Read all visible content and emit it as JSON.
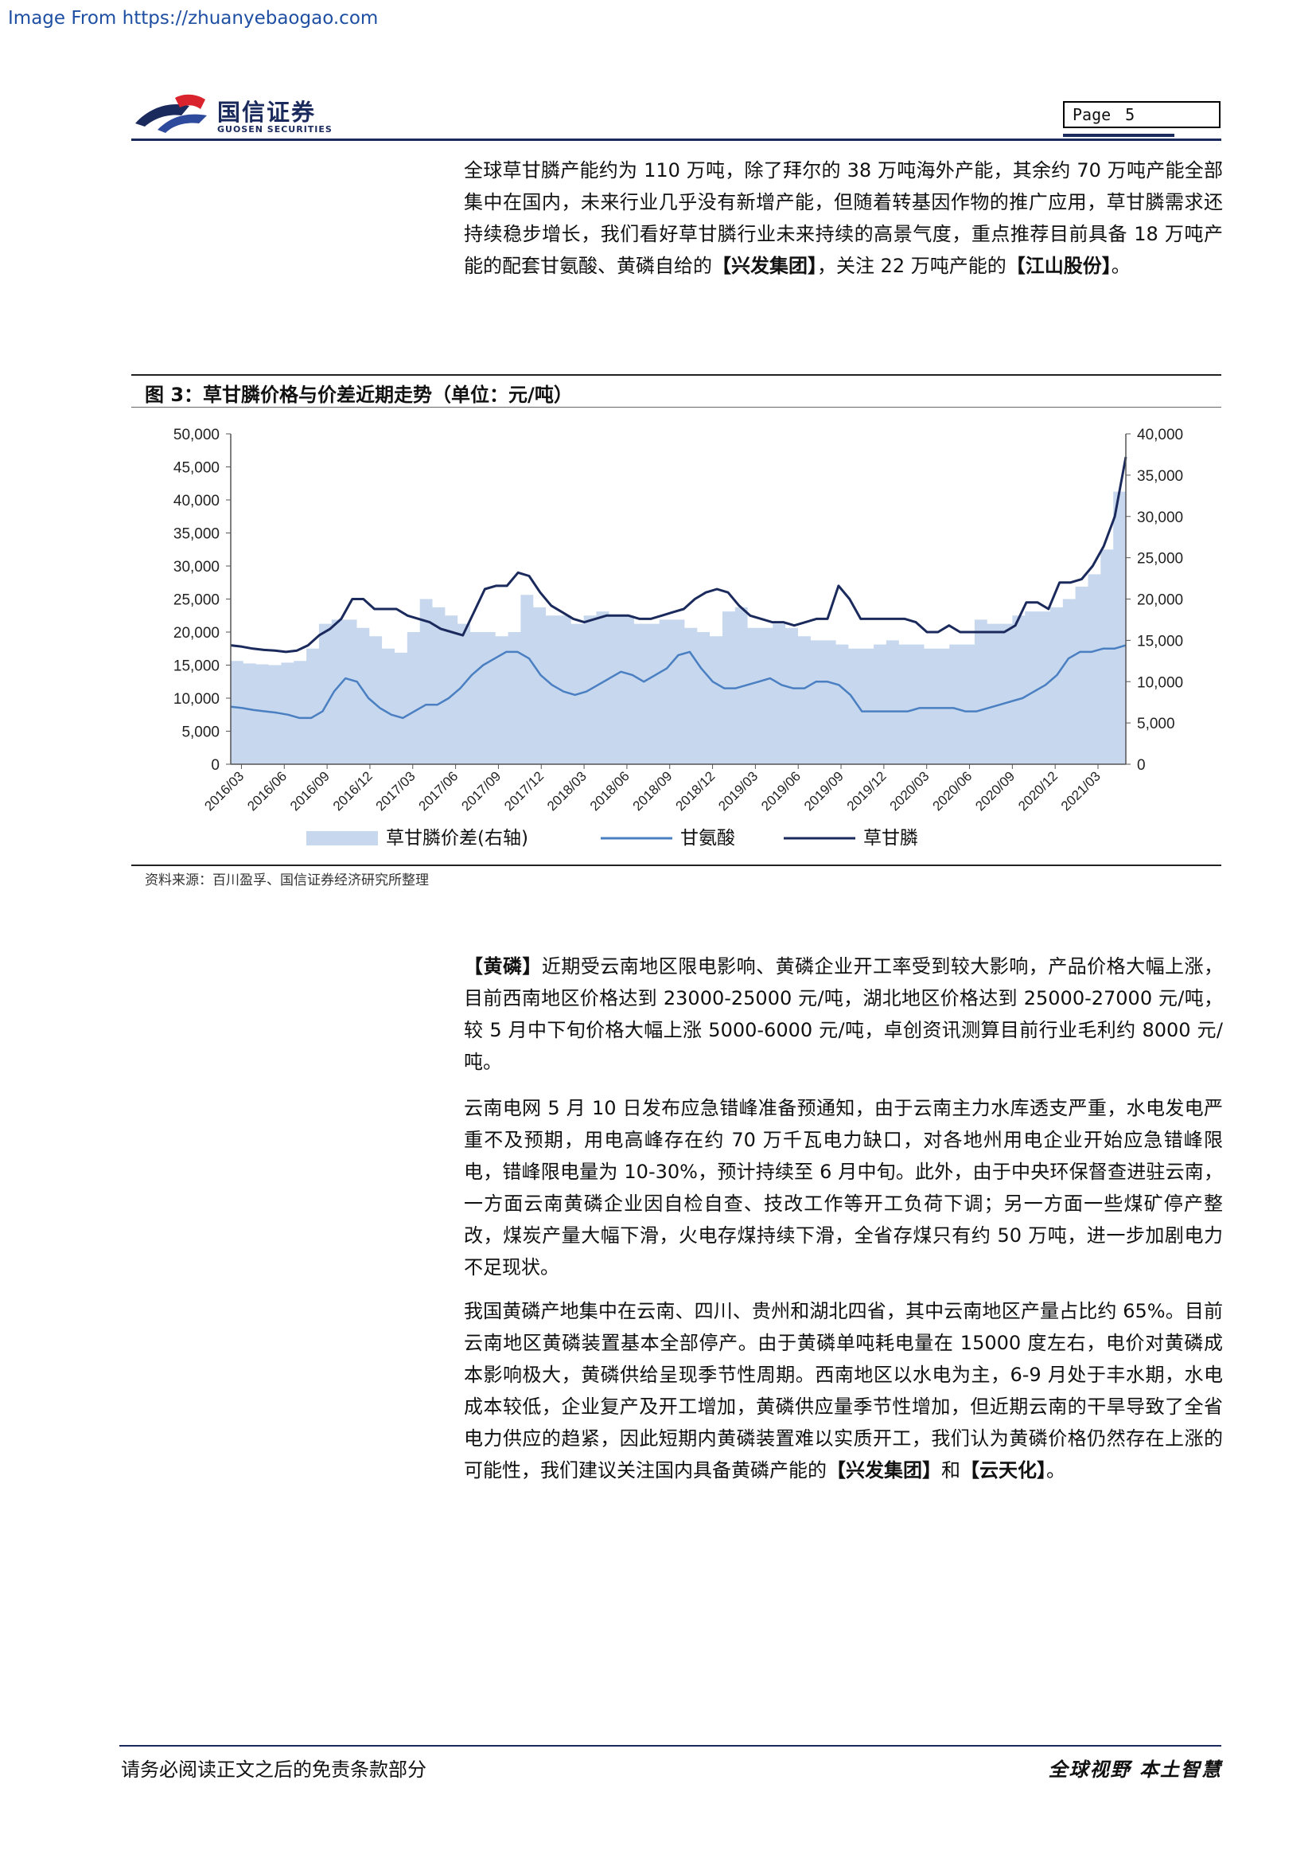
{
  "watermark": "Image From https://zhuanyebaogao.com",
  "header": {
    "logo_cn": "国信证券",
    "logo_en": "GUOSEN SECURITIES",
    "page_label": "Page",
    "page_number": "5"
  },
  "intro_paragraph": {
    "text_a": "全球草甘膦产能约为 110 万吨，除了拜尔的 38 万吨海外产能，其余约 70 万吨产能全部集中在国内，未来行业几乎没有新增产能，但随着转基因作物的推广应用，草甘膦需求还持续稳步增长，我们看好草甘膦行业未来持续的高景气度，重点推荐目前具备 18 万吨产能的配套甘氨酸、黄磷自给的",
    "bold_a": "【兴发集团】",
    "text_b": "，关注 22 万吨产能的",
    "bold_b": "【江山股份】",
    "text_c": "。"
  },
  "figure": {
    "title": "图 3：草甘膦价格与价差近期走势（单位：元/吨）",
    "source": "资料来源：百川盈孚、国信证券经济研究所整理"
  },
  "chart_data": {
    "type": "line",
    "x_labels": [
      "2016/03",
      "2016/06",
      "2016/09",
      "2016/12",
      "2017/03",
      "2017/06",
      "2017/09",
      "2017/12",
      "2018/03",
      "2018/06",
      "2018/09",
      "2018/12",
      "2019/03",
      "2019/06",
      "2019/09",
      "2019/12",
      "2020/03",
      "2020/06",
      "2020/09",
      "2020/12",
      "2021/03"
    ],
    "left_axis": {
      "min": 0,
      "max": 50000,
      "ticks": [
        "0",
        "5,000",
        "10,000",
        "15,000",
        "20,000",
        "25,000",
        "30,000",
        "35,000",
        "40,000",
        "45,000",
        "50,000"
      ]
    },
    "right_axis": {
      "min": 0,
      "max": 40000,
      "ticks": [
        "0",
        "5,000",
        "10,000",
        "15,000",
        "20,000",
        "25,000",
        "30,000",
        "35,000",
        "40,000"
      ]
    },
    "series": [
      {
        "name": "草甘膦价差(右轴)",
        "kind": "area",
        "axis": "right",
        "color": "#c6d7ee",
        "values": [
          12500,
          12200,
          12100,
          12000,
          12300,
          12500,
          14000,
          17000,
          17500,
          17500,
          16500,
          15500,
          14000,
          13500,
          16000,
          20000,
          19000,
          18000,
          17000,
          16000,
          16000,
          15500,
          16000,
          20500,
          19000,
          18000,
          18000,
          17000,
          18000,
          18500,
          18000,
          18000,
          17000,
          17000,
          17500,
          17500,
          16500,
          16000,
          15500,
          18500,
          19000,
          16500,
          16500,
          17000,
          16500,
          15500,
          15000,
          15000,
          14500,
          14000,
          14000,
          14500,
          15000,
          14500,
          14500,
          14000,
          14000,
          14500,
          14500,
          17500,
          17000,
          17000,
          18000,
          18500,
          18500,
          19000,
          20000,
          21500,
          23000,
          26000,
          33000
        ]
      },
      {
        "name": "甘氨酸",
        "kind": "line",
        "axis": "left",
        "color": "#4a7fc1",
        "values": [
          8700,
          8500,
          8200,
          8000,
          7800,
          7500,
          7000,
          7000,
          8000,
          11000,
          13000,
          12500,
          10000,
          8500,
          7500,
          7000,
          8000,
          9000,
          9000,
          10000,
          11500,
          13500,
          15000,
          16000,
          17000,
          17000,
          16000,
          13500,
          12000,
          11000,
          10500,
          11000,
          12000,
          13000,
          14000,
          13500,
          12500,
          13500,
          14500,
          16500,
          17000,
          14500,
          12500,
          11500,
          11500,
          12000,
          12500,
          13000,
          12000,
          11500,
          11500,
          12500,
          12500,
          12000,
          10500,
          8000,
          8000,
          8000,
          8000,
          8000,
          8500,
          8500,
          8500,
          8500,
          8000,
          8000,
          8500,
          9000,
          9500,
          10000,
          11000,
          12000,
          13500,
          16000,
          17000,
          17000,
          17500,
          17500,
          18000
        ]
      },
      {
        "name": "草甘膦",
        "kind": "line",
        "axis": "left",
        "color": "#1b2a5c",
        "values": [
          18000,
          17800,
          17500,
          17300,
          17200,
          17000,
          17200,
          18000,
          19500,
          20500,
          22000,
          25000,
          25000,
          23500,
          23500,
          23500,
          22500,
          22000,
          21500,
          20500,
          20000,
          19500,
          23000,
          26500,
          27000,
          27000,
          29000,
          28500,
          26000,
          24000,
          23000,
          22000,
          21500,
          22000,
          22500,
          22500,
          22500,
          22000,
          22000,
          22500,
          23000,
          23500,
          25000,
          26000,
          26500,
          26000,
          24000,
          22500,
          22000,
          21500,
          21500,
          21000,
          21500,
          22000,
          22000,
          27000,
          25000,
          22000,
          22000,
          22000,
          22000,
          22000,
          21500,
          20000,
          20000,
          21000,
          20000,
          20000,
          20000,
          20000,
          20000,
          21000,
          24500,
          24500,
          23500,
          27500,
          27500,
          28000,
          30000,
          33000,
          37500,
          46500
        ]
      }
    ],
    "legend_position": "bottom",
    "grid": false
  },
  "paragraphs": [
    {
      "bold_lead": "【黄磷】",
      "text": "近期受云南地区限电影响、黄磷企业开工率受到较大影响，产品价格大幅上涨，目前西南地区价格达到 23000-25000 元/吨，湖北地区价格达到 25000-27000 元/吨，较 5 月中下旬价格大幅上涨 5000-6000 元/吨，卓创资讯测算目前行业毛利约 8000 元/吨。"
    },
    {
      "text": "云南电网 5 月 10 日发布应急错峰准备预通知，由于云南主力水库透支严重，水电发电严重不及预期，用电高峰存在约 70 万千瓦电力缺口，对各地州用电企业开始应急错峰限电，错峰限电量为 10-30%，预计持续至 6 月中旬。此外，由于中央环保督查进驻云南，一方面云南黄磷企业因自检自查、技改工作等开工负荷下调；另一方面一些煤矿停产整改，煤炭产量大幅下滑，火电存煤持续下滑，全省存煤只有约 50 万吨，进一步加剧电力不足现状。"
    },
    {
      "text": "我国黄磷产地集中在云南、四川、贵州和湖北四省，其中云南地区产量占比约 65%。目前云南地区黄磷装置基本全部停产。由于黄磷单吨耗电量在 15000 度左右，电价对黄磷成本影响极大，黄磷供给呈现季节性周期。西南地区以水电为主，6-9 月处于丰水期，水电成本较低，企业复产及开工增加，黄磷供应量季节性增加，但近期云南的干旱导致了全省电力供应的趋紧，因此短期内黄磷装置难以实质开工，我们认为黄磷价格仍然存在上涨的可能性，我们建议关注国内具备黄磷产能的",
      "bold_a": "【兴发集团】",
      "text_b": "和",
      "bold_b": "【云天化】",
      "text_c": "。"
    }
  ],
  "footer": {
    "left": "请务必阅读正文之后的免责条款部分",
    "right": "全球视野  本土智慧"
  }
}
